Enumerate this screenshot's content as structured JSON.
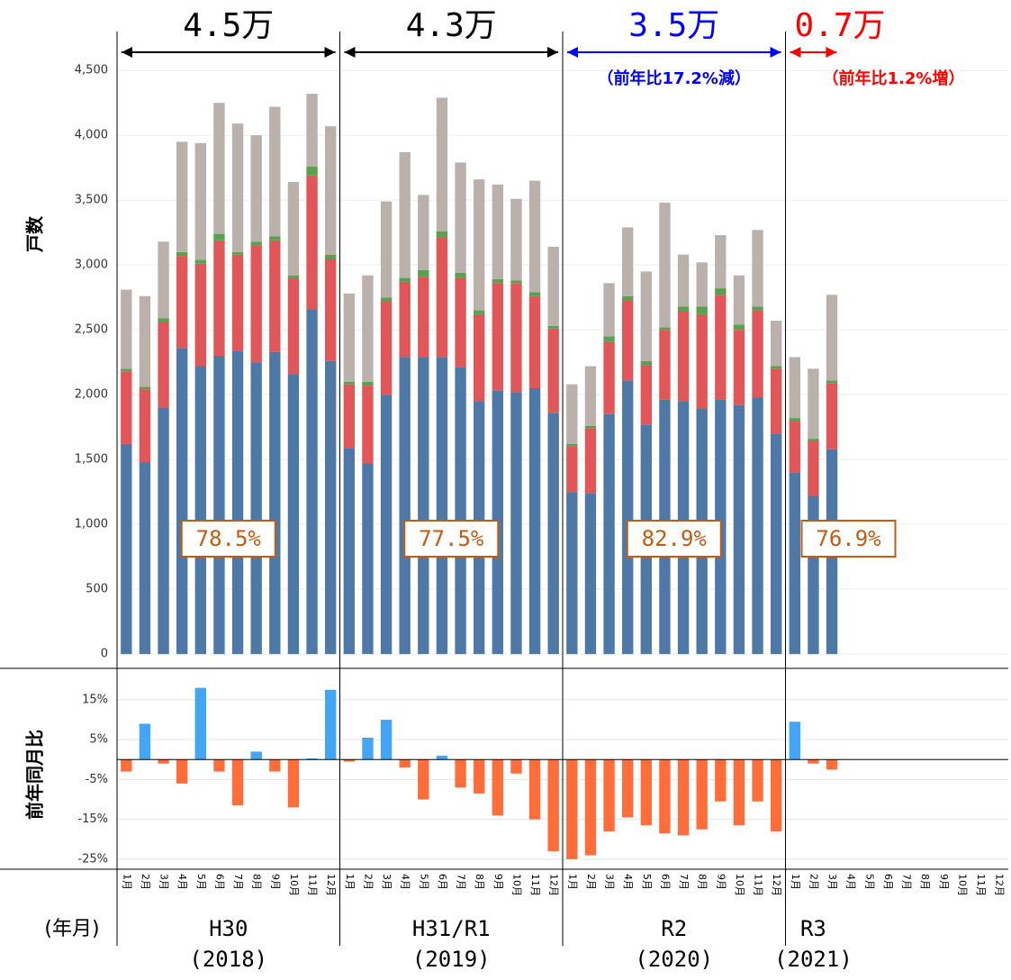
{
  "chart_data": [
    {
      "type": "stacked-bar",
      "y_label": "戸数",
      "x_label": "(年月)",
      "categories": [
        "1月",
        "2月",
        "3月",
        "4月",
        "5月",
        "6月",
        "7月",
        "8月",
        "9月",
        "10月",
        "11月",
        "12月",
        "1月",
        "2月",
        "3月",
        "4月",
        "5月",
        "6月",
        "7月",
        "8月",
        "9月",
        "10月",
        "11月",
        "12月",
        "1月",
        "2月",
        "3月",
        "4月",
        "5月",
        "6月",
        "7月",
        "8月",
        "9月",
        "10月",
        "11月",
        "12月",
        "1月",
        "2月",
        "3月",
        "4月",
        "5月",
        "6月",
        "7月",
        "8月",
        "9月",
        "10月",
        "11月",
        "12月"
      ],
      "groups": [
        {
          "label": "H30",
          "sub": "(2018)"
        },
        {
          "label": "H31/R1",
          "sub": "(2019)"
        },
        {
          "label": "R2",
          "sub": "(2020)"
        },
        {
          "label": "R3",
          "sub": "(2021)"
        }
      ],
      "annotations": [
        {
          "text": "4.5万",
          "color": "#000000"
        },
        {
          "text": "4.3万",
          "color": "#000000"
        },
        {
          "text": "3.5万",
          "sub": "（前年比17.2%減）",
          "color": "#0000ff"
        },
        {
          "text": "0.7万",
          "sub": "（前年比1.2%増）",
          "color": "#ff0000"
        }
      ],
      "ratio_labels": [
        "78.5%",
        "77.5%",
        "82.9%",
        "76.9%"
      ],
      "series": [
        {
          "color": "#4e79a7",
          "values": [
            1620,
            1480,
            1900,
            2360,
            2220,
            2300,
            2340,
            2250,
            2330,
            2160,
            2660,
            2260,
            1590,
            1470,
            2000,
            2290,
            2290,
            2290,
            2210,
            1950,
            2030,
            2020,
            2050,
            1860,
            1250,
            1240,
            1850,
            2110,
            1770,
            1960,
            1950,
            1890,
            1960,
            1920,
            1980,
            1700,
            1400,
            1220,
            1580,
            null,
            null,
            null,
            null,
            null,
            null,
            null,
            null,
            null
          ]
        },
        {
          "color": "#e15759",
          "values": [
            560,
            560,
            660,
            710,
            790,
            890,
            740,
            900,
            860,
            740,
            1030,
            790,
            490,
            600,
            720,
            580,
            620,
            920,
            690,
            670,
            830,
            840,
            710,
            650,
            350,
            500,
            560,
            620,
            460,
            540,
            690,
            730,
            810,
            580,
            670,
            500,
            400,
            420,
            510,
            null,
            null,
            null,
            null,
            null,
            null,
            null,
            null,
            null
          ]
        },
        {
          "color": "#59a14f",
          "values": [
            20,
            20,
            30,
            30,
            30,
            50,
            20,
            30,
            30,
            20,
            70,
            30,
            20,
            30,
            30,
            30,
            50,
            50,
            40,
            30,
            30,
            20,
            30,
            20,
            20,
            20,
            40,
            30,
            30,
            20,
            40,
            60,
            50,
            40,
            30,
            20,
            20,
            20,
            20,
            null,
            null,
            null,
            null,
            null,
            null,
            null,
            null,
            null
          ]
        },
        {
          "color": "#bab0ac",
          "values": [
            610,
            700,
            590,
            850,
            900,
            1010,
            990,
            820,
            1000,
            720,
            560,
            990,
            680,
            820,
            740,
            970,
            580,
            1030,
            850,
            1010,
            730,
            630,
            860,
            610,
            460,
            460,
            410,
            530,
            690,
            960,
            400,
            340,
            410,
            380,
            590,
            350,
            470,
            540,
            660,
            null,
            null,
            null,
            null,
            null,
            null,
            null,
            null,
            null
          ]
        }
      ],
      "ylim": [
        -110,
        4800
      ],
      "yticks": [
        0,
        500,
        {
          "value": 1000,
          "label": "1,000"
        },
        {
          "value": 1500,
          "label": "1,500"
        },
        {
          "value": 2000,
          "label": "2,000"
        },
        {
          "value": 2500,
          "label": "2,500"
        },
        {
          "value": 3000,
          "label": "3,000"
        },
        {
          "value": 3500,
          "label": "3,500"
        },
        {
          "value": 4000,
          "label": "4,000"
        },
        {
          "value": 4500,
          "label": "4,500"
        }
      ],
      "grid": true
    },
    {
      "type": "diverging-bar",
      "y_label": "前年同月比",
      "positive_color": "#42a5f5",
      "negative_color": "#ff6d3a",
      "values": [
        -3,
        9,
        -1,
        -6,
        18,
        -3,
        -11.5,
        2,
        -3,
        -12,
        0.3,
        17.5,
        -0.5,
        5.5,
        10,
        -2,
        -10,
        1,
        -7,
        -8.5,
        -14,
        -3.5,
        -15,
        -23,
        -25,
        -24,
        -18,
        -14.5,
        -16.5,
        -18.5,
        -19,
        -17.5,
        -10.5,
        -16.5,
        -10.5,
        -18,
        9.5,
        -1,
        -2.5,
        null,
        null,
        null,
        null,
        null,
        null,
        null,
        null,
        null
      ],
      "ylim": [
        -27.5,
        19.5
      ],
      "yticks": [
        {
          "value": -25,
          "label": "-25%"
        },
        {
          "value": -15,
          "label": "-15%"
        },
        {
          "value": -5,
          "label": "-5%"
        },
        {
          "value": 5,
          "label": "5%"
        },
        {
          "value": 15,
          "label": "15%"
        }
      ],
      "grid": true
    }
  ]
}
